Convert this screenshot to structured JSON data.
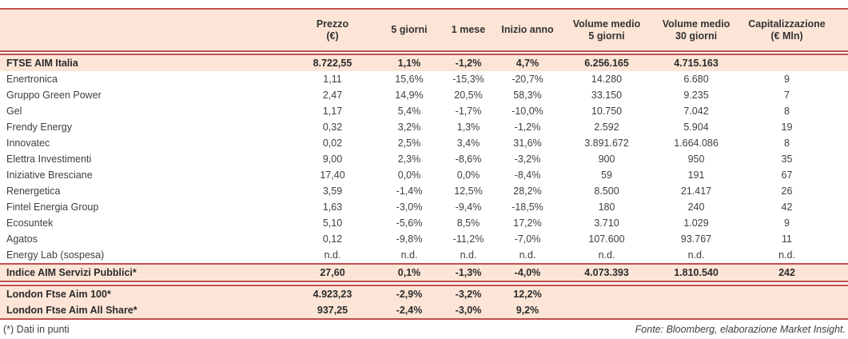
{
  "colors": {
    "accent": "#c0504d",
    "band": "#fce5d6"
  },
  "table": {
    "headers": {
      "prezzo_l1": "Prezzo",
      "prezzo_l2": "(€)",
      "g5": "5 giorni",
      "m1": "1 mese",
      "ytd": "Inizio anno",
      "vol5_l1": "Volume medio",
      "vol5_l2": "5 giorni",
      "vol30_l1": "Volume medio",
      "vol30_l2": "30 giorni",
      "cap_l1": "Capitalizzazione",
      "cap_l2": "(€ Mln)"
    },
    "index_row": {
      "name": "FTSE AIM Italia",
      "prezzo": "8.722,55",
      "g5": "1,1%",
      "m1": "-1,2%",
      "ytd": "4,7%",
      "vol5": "6.256.165",
      "vol30": "4.715.163",
      "cap": ""
    },
    "companies": [
      {
        "name": "Enertronica",
        "prezzo": "1,11",
        "g5": "15,6%",
        "m1": "-15,3%",
        "ytd": "-20,7%",
        "vol5": "14.280",
        "vol30": "6.680",
        "cap": "9"
      },
      {
        "name": "Gruppo Green Power",
        "prezzo": "2,47",
        "g5": "14,9%",
        "m1": "20,5%",
        "ytd": "58,3%",
        "vol5": "33.150",
        "vol30": "9.235",
        "cap": "7"
      },
      {
        "name": "Gel",
        "prezzo": "1,17",
        "g5": "5,4%",
        "m1": "-1,7%",
        "ytd": "-10,0%",
        "vol5": "10.750",
        "vol30": "7.042",
        "cap": "8"
      },
      {
        "name": "Frendy Energy",
        "prezzo": "0,32",
        "g5": "3,2%",
        "m1": "1,3%",
        "ytd": "-1,2%",
        "vol5": "2.592",
        "vol30": "5.904",
        "cap": "19"
      },
      {
        "name": "Innovatec",
        "prezzo": "0,02",
        "g5": "2,5%",
        "m1": "3,4%",
        "ytd": "31,6%",
        "vol5": "3.891.672",
        "vol30": "1.664.086",
        "cap": "8"
      },
      {
        "name": "Elettra Investimenti",
        "prezzo": "9,00",
        "g5": "2,3%",
        "m1": "-8,6%",
        "ytd": "-3,2%",
        "vol5": "900",
        "vol30": "950",
        "cap": "35"
      },
      {
        "name": "Iniziative Bresciane",
        "prezzo": "17,40",
        "g5": "0,0%",
        "m1": "0,0%",
        "ytd": "-8,4%",
        "vol5": "59",
        "vol30": "191",
        "cap": "67"
      },
      {
        "name": "Renergetica",
        "prezzo": "3,59",
        "g5": "-1,4%",
        "m1": "12,5%",
        "ytd": "28,2%",
        "vol5": "8.500",
        "vol30": "21.417",
        "cap": "26"
      },
      {
        "name": "Fintel Energia Group",
        "prezzo": "1,63",
        "g5": "-3,0%",
        "m1": "-9,4%",
        "ytd": "-18,5%",
        "vol5": "180",
        "vol30": "240",
        "cap": "42"
      },
      {
        "name": "Ecosuntek",
        "prezzo": "5,10",
        "g5": "-5,6%",
        "m1": "8,5%",
        "ytd": "17,2%",
        "vol5": "3.710",
        "vol30": "1.029",
        "cap": "9"
      },
      {
        "name": "Agatos",
        "prezzo": "0,12",
        "g5": "-9,8%",
        "m1": "-11,2%",
        "ytd": "-7,0%",
        "vol5": "107.600",
        "vol30": "93.767",
        "cap": "11"
      },
      {
        "name": "Energy Lab (sospesa)",
        "prezzo": "n.d.",
        "g5": "n.d.",
        "m1": "n.d.",
        "ytd": "n.d.",
        "vol5": "n.d.",
        "vol30": "n.d.",
        "cap": "n.d."
      }
    ],
    "servizi_row": {
      "name": "Indice AIM Servizi Pubblici*",
      "prezzo": "27,60",
      "g5": "0,1%",
      "m1": "-1,3%",
      "ytd": "-4,0%",
      "vol5": "4.073.393",
      "vol30": "1.810.540",
      "cap": "242"
    },
    "london_rows": [
      {
        "name": "London Ftse Aim 100*",
        "prezzo": "4.923,23",
        "g5": "-2,9%",
        "m1": "-3,2%",
        "ytd": "12,2%",
        "vol5": "",
        "vol30": "",
        "cap": ""
      },
      {
        "name": "London Ftse Aim All Share*",
        "prezzo": "937,25",
        "g5": "-2,4%",
        "m1": "-3,0%",
        "ytd": "9,2%",
        "vol5": "",
        "vol30": "",
        "cap": ""
      }
    ]
  },
  "footer": {
    "footnote": "(*) Dati in punti",
    "source": "Fonte: Bloomberg, elaborazione Market Insight."
  }
}
